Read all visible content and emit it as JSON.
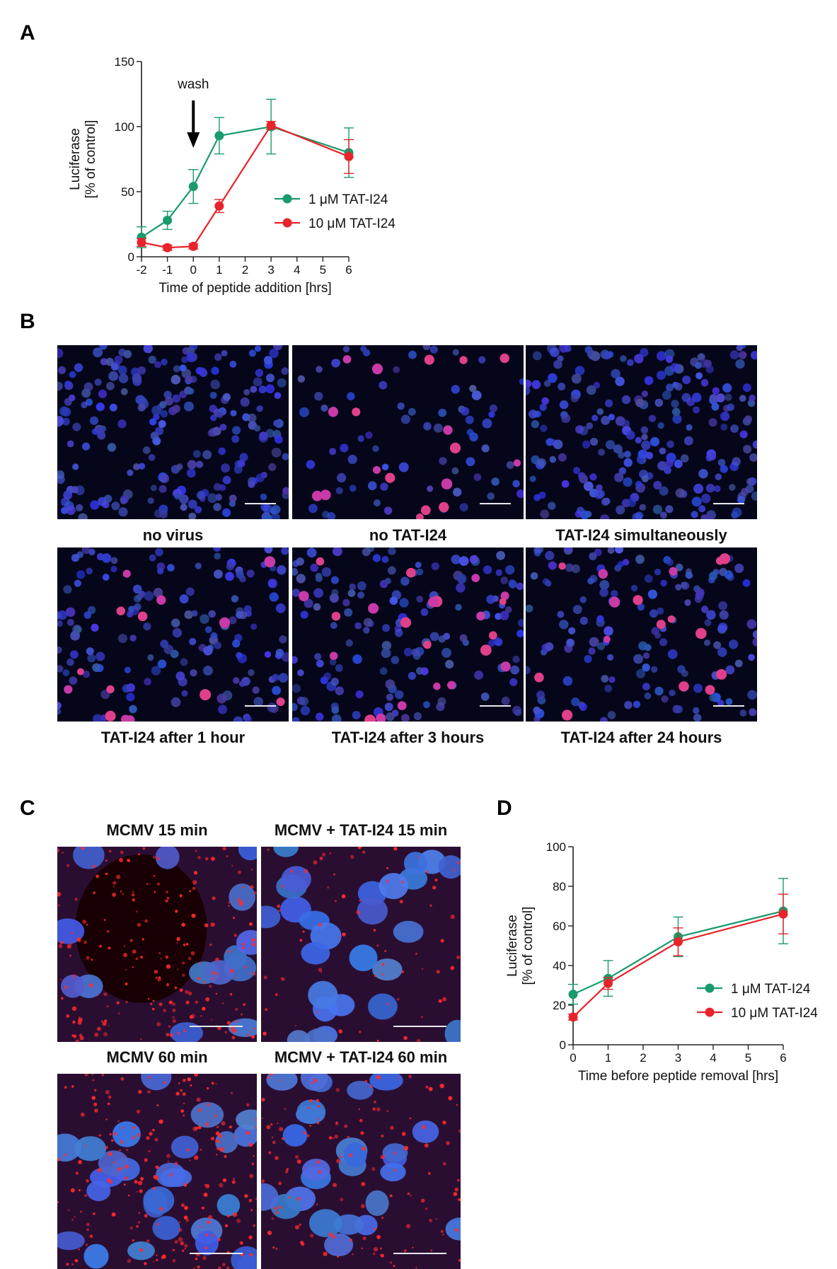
{
  "panels": {
    "a": "A",
    "b": "B",
    "c": "C",
    "d": "D"
  },
  "chart_data": [
    {
      "type": "line",
      "panel": "A",
      "xlabel": "Time of peptide addition [hrs]",
      "ylabel_line1": "Luciferase",
      "ylabel_line2": "[% of control]",
      "xlim": [
        -2,
        6
      ],
      "ylim": [
        0,
        150
      ],
      "x_ticks": [
        -2,
        -1,
        0,
        1,
        2,
        3,
        4,
        5,
        6
      ],
      "y_ticks": [
        0,
        50,
        100,
        150
      ],
      "annotation": "wash",
      "annotation_x": 0,
      "legend": "right-middle",
      "series": [
        {
          "name": "1 μM TAT-I24",
          "color": "#1a9b6c",
          "x": [
            -2,
            -1,
            0,
            1,
            3,
            6
          ],
          "y": [
            15,
            28,
            54,
            93,
            100,
            80
          ],
          "err": [
            8,
            7,
            13,
            14,
            21,
            19
          ]
        },
        {
          "name": "10 μM TAT-I24",
          "color": "#e8232a",
          "x": [
            -2,
            -1,
            0,
            1,
            3,
            6
          ],
          "y": [
            11,
            7,
            8,
            39,
            101,
            77
          ],
          "err": [
            3,
            2,
            2,
            5,
            3,
            13
          ]
        }
      ]
    },
    {
      "type": "line",
      "panel": "D",
      "xlabel": "Time before peptide removal [hrs]",
      "ylabel_line1": "Luciferase",
      "ylabel_line2": "[% of control]",
      "xlim": [
        0,
        6
      ],
      "ylim": [
        0,
        100
      ],
      "x_ticks": [
        0,
        1,
        2,
        3,
        4,
        5,
        6
      ],
      "y_ticks": [
        0,
        20,
        40,
        60,
        80,
        100
      ],
      "legend": "right-middle",
      "series": [
        {
          "name": "1 μM TAT-I24",
          "color": "#1a9b6c",
          "x": [
            0,
            1,
            3,
            6
          ],
          "y": [
            25.5,
            33.5,
            54.5,
            67.5
          ],
          "err": [
            5,
            9,
            10,
            16.5
          ]
        },
        {
          "name": "10 μM TAT-I24",
          "color": "#e8232a",
          "x": [
            0,
            1,
            3,
            6
          ],
          "y": [
            14,
            31,
            52,
            66
          ],
          "err": [
            1.5,
            3,
            7,
            10
          ]
        }
      ]
    }
  ],
  "panel_b": {
    "images": [
      {
        "caption": "no virus",
        "magenta_cells": 0,
        "density": "high"
      },
      {
        "caption": "no TAT-I24",
        "magenta_cells": 18,
        "density": "low"
      },
      {
        "caption": "TAT-I24 simultaneously",
        "magenta_cells": 0,
        "density": "high"
      },
      {
        "caption": "TAT-I24 after 1 hour",
        "magenta_cells": 14,
        "density": "medium"
      },
      {
        "caption": "TAT-I24 after 3 hours",
        "magenta_cells": 22,
        "density": "medium"
      },
      {
        "caption": "TAT-I24 after 24 hours",
        "magenta_cells": 16,
        "density": "medium"
      }
    ]
  },
  "panel_c": {
    "images": [
      {
        "caption": "MCMV 15 min",
        "red_level": "high",
        "hole": true
      },
      {
        "caption": "MCMV + TAT-I24 15 min",
        "red_level": "low",
        "hole": false
      },
      {
        "caption": "MCMV 60 min",
        "red_level": "high",
        "hole": false
      },
      {
        "caption": "MCMV + TAT-I24 60 min",
        "red_level": "medium",
        "hole": false
      }
    ]
  }
}
